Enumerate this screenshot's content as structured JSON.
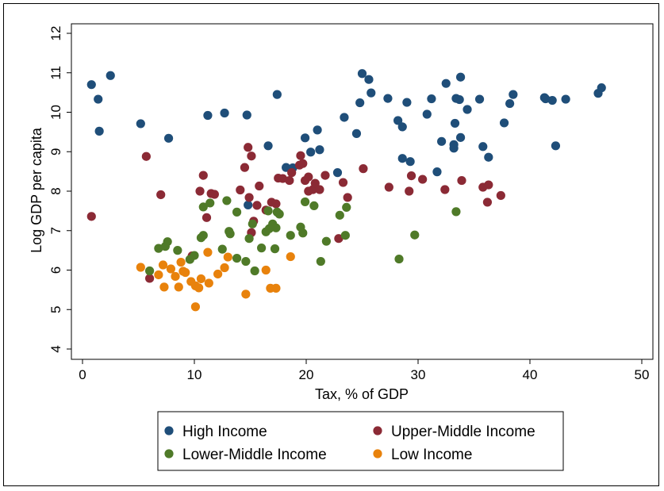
{
  "chart_data": {
    "type": "scatter",
    "xlabel": "Tax, % of GDP",
    "ylabel": "Log GDP per capita",
    "xlim": [
      0,
      50
    ],
    "ylim": [
      4,
      12
    ],
    "xticks": [
      0,
      10,
      20,
      30,
      40,
      50
    ],
    "yticks": [
      4,
      5,
      6,
      7,
      8,
      9,
      10,
      11,
      12
    ],
    "grid": false,
    "legend_position": "bottom",
    "series": [
      {
        "name": "High Income",
        "color": "#1f4e79",
        "points": [
          [
            0.8,
            10.7
          ],
          [
            1.4,
            10.33
          ],
          [
            1.5,
            9.52
          ],
          [
            2.5,
            10.93
          ],
          [
            5.2,
            9.71
          ],
          [
            7.7,
            9.34
          ],
          [
            11.2,
            9.92
          ],
          [
            12.7,
            9.98
          ],
          [
            14.7,
            9.93
          ],
          [
            14.8,
            7.65
          ],
          [
            16.6,
            9.15
          ],
          [
            17.4,
            10.45
          ],
          [
            18.2,
            8.6
          ],
          [
            18.8,
            8.59
          ],
          [
            19.9,
            9.35
          ],
          [
            20.4,
            8.99
          ],
          [
            21.0,
            9.55
          ],
          [
            21.2,
            9.05
          ],
          [
            22.8,
            8.47
          ],
          [
            23.4,
            9.87
          ],
          [
            24.5,
            9.46
          ],
          [
            24.8,
            10.24
          ],
          [
            25.0,
            10.98
          ],
          [
            25.6,
            10.83
          ],
          [
            25.8,
            10.49
          ],
          [
            27.3,
            10.35
          ],
          [
            28.2,
            9.79
          ],
          [
            28.6,
            9.63
          ],
          [
            28.6,
            8.83
          ],
          [
            29.0,
            10.25
          ],
          [
            29.3,
            8.75
          ],
          [
            30.8,
            9.95
          ],
          [
            31.2,
            10.34
          ],
          [
            31.7,
            8.49
          ],
          [
            32.1,
            9.26
          ],
          [
            32.5,
            10.73
          ],
          [
            33.2,
            9.09
          ],
          [
            33.2,
            9.18
          ],
          [
            33.3,
            9.72
          ],
          [
            33.4,
            10.35
          ],
          [
            33.7,
            10.32
          ],
          [
            33.8,
            10.89
          ],
          [
            33.8,
            9.36
          ],
          [
            34.4,
            10.07
          ],
          [
            35.5,
            10.33
          ],
          [
            35.8,
            9.13
          ],
          [
            36.3,
            8.86
          ],
          [
            37.7,
            9.73
          ],
          [
            38.2,
            10.22
          ],
          [
            38.5,
            10.45
          ],
          [
            41.3,
            10.37
          ],
          [
            41.4,
            10.34
          ],
          [
            42.0,
            10.3
          ],
          [
            42.3,
            9.15
          ],
          [
            43.2,
            10.33
          ],
          [
            46.1,
            10.48
          ],
          [
            46.4,
            10.62
          ]
        ]
      },
      {
        "name": "Upper-Middle Income",
        "color": "#8b2a35",
        "points": [
          [
            0.8,
            7.36
          ],
          [
            5.7,
            8.88
          ],
          [
            6.0,
            5.79
          ],
          [
            7.0,
            7.91
          ],
          [
            9.8,
            6.36
          ],
          [
            10.5,
            8.0
          ],
          [
            10.8,
            8.4
          ],
          [
            11.1,
            7.33
          ],
          [
            11.5,
            7.94
          ],
          [
            11.8,
            7.92
          ],
          [
            14.1,
            8.03
          ],
          [
            14.5,
            8.6
          ],
          [
            14.8,
            9.11
          ],
          [
            14.9,
            7.84
          ],
          [
            15.1,
            8.89
          ],
          [
            15.1,
            6.95
          ],
          [
            15.3,
            7.24
          ],
          [
            15.6,
            7.64
          ],
          [
            15.8,
            8.13
          ],
          [
            16.4,
            7.52
          ],
          [
            16.9,
            7.72
          ],
          [
            17.3,
            7.68
          ],
          [
            17.5,
            8.33
          ],
          [
            17.9,
            8.32
          ],
          [
            18.5,
            8.27
          ],
          [
            18.7,
            8.47
          ],
          [
            19.4,
            8.66
          ],
          [
            19.5,
            8.9
          ],
          [
            19.7,
            8.7
          ],
          [
            19.9,
            8.27
          ],
          [
            20.2,
            8.0
          ],
          [
            20.2,
            8.36
          ],
          [
            20.6,
            8.04
          ],
          [
            20.8,
            8.2
          ],
          [
            21.2,
            8.04
          ],
          [
            21.7,
            8.4
          ],
          [
            22.9,
            6.8
          ],
          [
            23.3,
            8.22
          ],
          [
            23.7,
            7.84
          ],
          [
            25.1,
            8.57
          ],
          [
            27.4,
            8.1
          ],
          [
            29.2,
            8.0
          ],
          [
            29.4,
            8.39
          ],
          [
            30.4,
            8.3
          ],
          [
            32.4,
            8.04
          ],
          [
            33.9,
            8.27
          ],
          [
            35.8,
            8.1
          ],
          [
            36.2,
            7.72
          ],
          [
            36.3,
            8.16
          ],
          [
            37.4,
            7.89
          ]
        ]
      },
      {
        "name": "Lower-Middle Income",
        "color": "#4f7a28",
        "points": [
          [
            6.0,
            5.98
          ],
          [
            6.8,
            6.55
          ],
          [
            7.4,
            6.6
          ],
          [
            7.6,
            6.72
          ],
          [
            8.5,
            6.5
          ],
          [
            9.6,
            6.27
          ],
          [
            10.0,
            6.37
          ],
          [
            10.6,
            6.82
          ],
          [
            10.8,
            6.88
          ],
          [
            10.8,
            7.6
          ],
          [
            11.4,
            7.7
          ],
          [
            12.5,
            6.53
          ],
          [
            12.9,
            7.76
          ],
          [
            13.1,
            6.98
          ],
          [
            13.2,
            6.92
          ],
          [
            13.8,
            7.47
          ],
          [
            13.8,
            6.3
          ],
          [
            14.6,
            6.22
          ],
          [
            14.9,
            6.8
          ],
          [
            15.2,
            7.17
          ],
          [
            15.4,
            5.98
          ],
          [
            16.0,
            6.56
          ],
          [
            16.4,
            6.97
          ],
          [
            16.6,
            7.5
          ],
          [
            16.7,
            7.05
          ],
          [
            17.0,
            7.17
          ],
          [
            17.2,
            6.54
          ],
          [
            17.3,
            7.07
          ],
          [
            17.4,
            7.47
          ],
          [
            17.6,
            7.42
          ],
          [
            18.6,
            6.88
          ],
          [
            19.5,
            7.09
          ],
          [
            19.7,
            6.94
          ],
          [
            19.9,
            7.73
          ],
          [
            20.7,
            7.63
          ],
          [
            21.3,
            6.22
          ],
          [
            21.8,
            6.73
          ],
          [
            23.0,
            7.39
          ],
          [
            23.5,
            6.88
          ],
          [
            23.6,
            7.59
          ],
          [
            28.3,
            6.28
          ],
          [
            29.7,
            6.89
          ],
          [
            33.4,
            7.48
          ]
        ]
      },
      {
        "name": "Low Income",
        "color": "#e8820c",
        "points": [
          [
            5.2,
            6.07
          ],
          [
            6.8,
            5.88
          ],
          [
            7.2,
            6.13
          ],
          [
            7.3,
            5.57
          ],
          [
            7.9,
            6.03
          ],
          [
            8.3,
            5.84
          ],
          [
            8.6,
            5.57
          ],
          [
            8.8,
            6.2
          ],
          [
            9.0,
            5.97
          ],
          [
            9.2,
            5.94
          ],
          [
            9.7,
            5.71
          ],
          [
            10.1,
            5.07
          ],
          [
            10.1,
            5.6
          ],
          [
            10.4,
            5.55
          ],
          [
            10.6,
            5.78
          ],
          [
            11.2,
            6.45
          ],
          [
            11.3,
            5.67
          ],
          [
            12.1,
            5.9
          ],
          [
            12.7,
            6.06
          ],
          [
            13.0,
            6.33
          ],
          [
            16.4,
            6.0
          ],
          [
            14.6,
            5.39
          ],
          [
            16.8,
            5.54
          ],
          [
            17.3,
            5.54
          ],
          [
            18.6,
            6.34
          ]
        ]
      }
    ]
  }
}
